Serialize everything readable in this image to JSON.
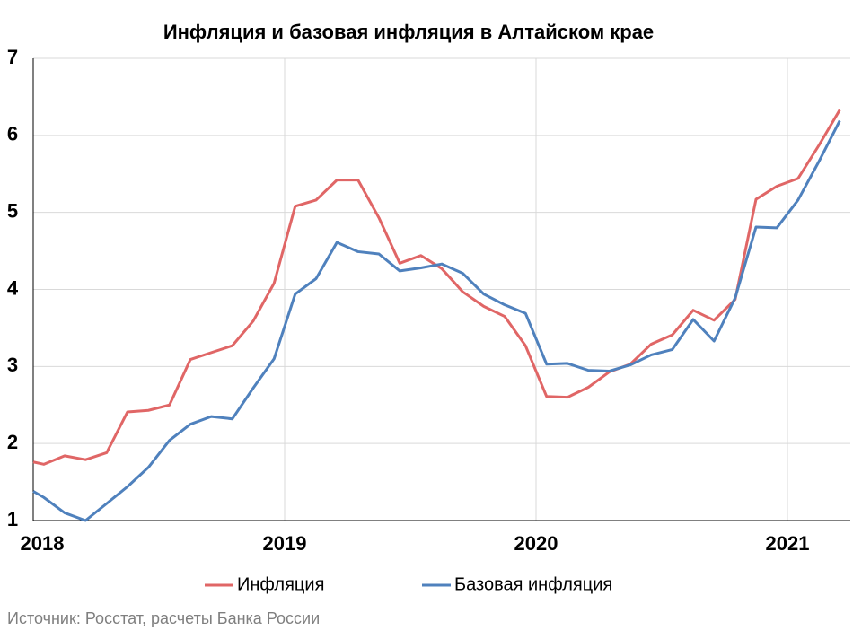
{
  "chart_data": {
    "type": "line",
    "title": "Инфляция и базовая инфляция в Алтайском крае",
    "source": "Источник: Росстат, расчеты Банка России",
    "x": [
      2018,
      2018.042,
      2018.125,
      2018.208,
      2018.292,
      2018.375,
      2018.458,
      2018.542,
      2018.625,
      2018.708,
      2018.792,
      2018.875,
      2018.958,
      2019.042,
      2019.125,
      2019.208,
      2019.292,
      2019.375,
      2019.458,
      2019.542,
      2019.625,
      2019.708,
      2019.792,
      2019.875,
      2019.958,
      2020.042,
      2020.125,
      2020.208,
      2020.292,
      2020.375,
      2020.458,
      2020.542,
      2020.625,
      2020.708,
      2020.792,
      2020.875,
      2020.958,
      2021.042,
      2021.125,
      2021.208
    ],
    "series": [
      {
        "name": "Инфляция",
        "color": "#e06666",
        "values": [
          1.76,
          1.73,
          1.84,
          1.79,
          1.88,
          2.41,
          2.43,
          2.5,
          3.09,
          3.18,
          3.27,
          3.59,
          4.08,
          5.08,
          5.16,
          5.42,
          5.42,
          4.93,
          4.34,
          4.44,
          4.27,
          3.97,
          3.78,
          3.65,
          3.27,
          2.61,
          2.6,
          2.73,
          2.93,
          3.03,
          3.29,
          3.41,
          3.73,
          3.6,
          3.87,
          5.17,
          5.34,
          5.44,
          5.87,
          6.33
        ]
      },
      {
        "name": "Базовая инфляция",
        "color": "#4f81bd",
        "values": [
          1.38,
          1.3,
          1.1,
          1.0,
          1.22,
          1.44,
          1.69,
          2.04,
          2.25,
          2.35,
          2.32,
          2.72,
          3.1,
          3.94,
          4.14,
          4.61,
          4.49,
          4.46,
          4.24,
          4.28,
          4.33,
          4.21,
          3.94,
          3.8,
          3.69,
          3.03,
          3.04,
          2.95,
          2.94,
          3.02,
          3.15,
          3.22,
          3.61,
          3.33,
          3.89,
          4.81,
          4.8,
          5.16,
          5.66,
          6.19
        ]
      }
    ],
    "xlim": [
      2018,
      2021.25
    ],
    "xticks": [
      2018,
      2019,
      2020,
      2021
    ],
    "ylim": [
      1,
      7
    ],
    "yticks": [
      1,
      2,
      3,
      4,
      5,
      6,
      7
    ],
    "grid": true,
    "legend": "bottom"
  }
}
